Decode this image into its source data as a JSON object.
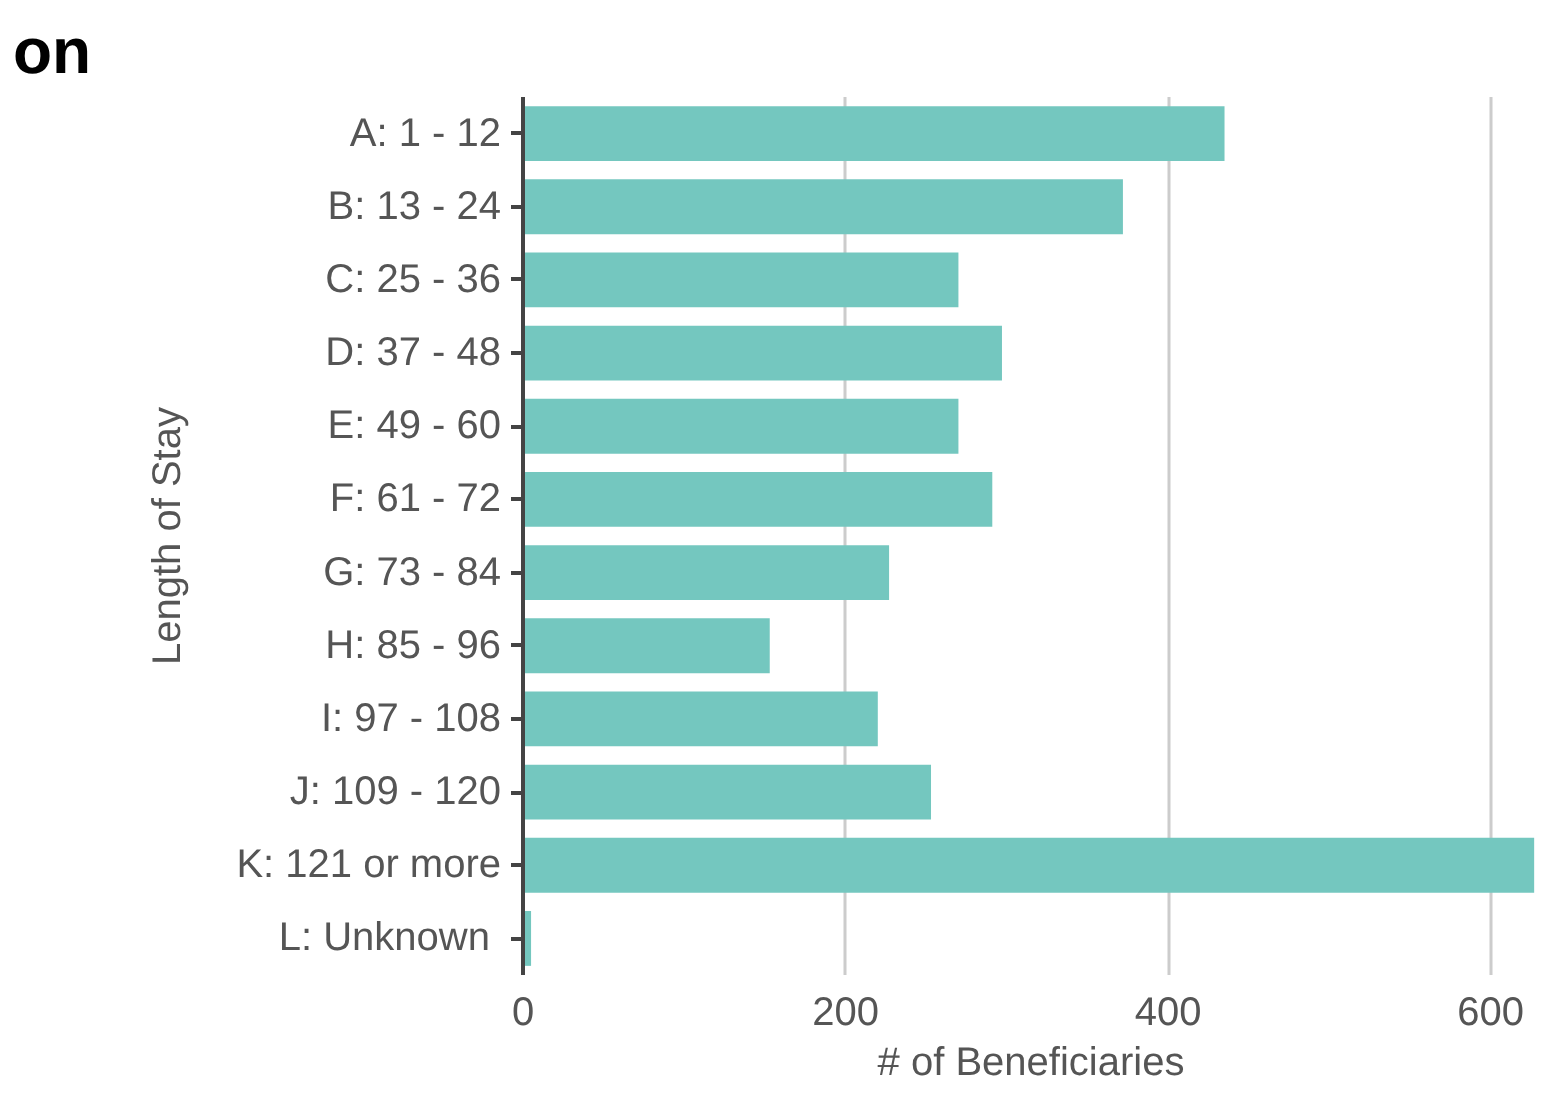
{
  "chart_data": {
    "type": "bar",
    "orientation": "horizontal",
    "title": "on",
    "xlabel": "# of Beneficiaries",
    "ylabel": "Length of Stay",
    "categories": [
      "A: 1 - 12",
      "B: 13 - 24",
      "C: 25 - 36",
      "D: 37 - 48",
      "E: 49 - 60",
      "F: 61 - 72",
      "G: 73 - 84",
      "H: 85 - 96",
      "I: 97 - 108",
      "J: 109 - 120",
      "K: 121 or more",
      "L:  Unknown"
    ],
    "values": [
      435,
      372,
      270,
      297,
      270,
      291,
      227,
      153,
      220,
      253,
      627,
      5
    ],
    "color": "#74c7bf",
    "xlim": [
      0,
      630
    ],
    "xticks": [
      0,
      200,
      400,
      600
    ],
    "grid": "x"
  }
}
